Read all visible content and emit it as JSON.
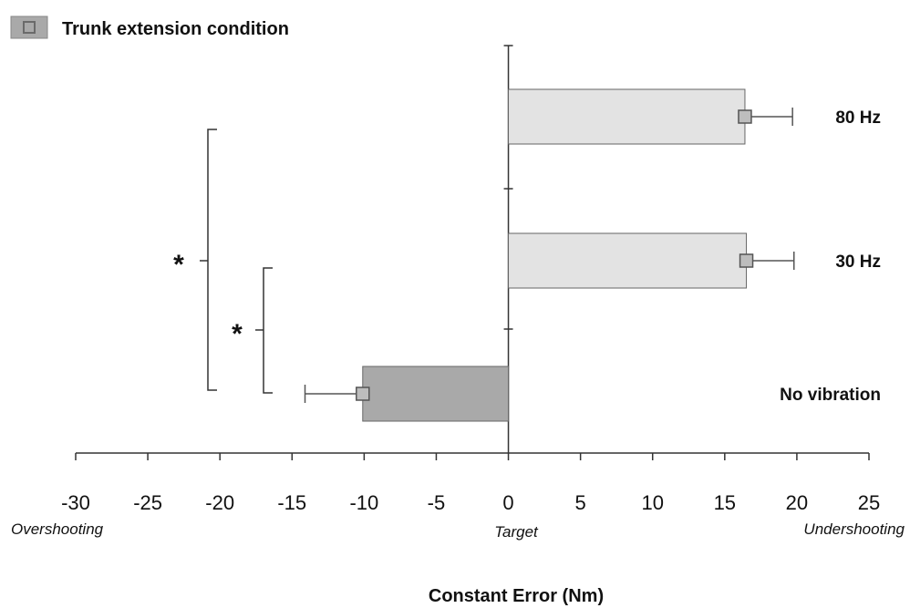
{
  "chart_data": {
    "type": "bar",
    "orientation": "horizontal",
    "legend": {
      "label": "Trunk extension condition",
      "placement": "top-left"
    },
    "categories": [
      "No vibration",
      "30 Hz",
      "80 Hz"
    ],
    "series": [
      {
        "name": "Trunk extension condition",
        "values": [
          -10.1,
          16.5,
          16.4
        ],
        "errors": [
          4.0,
          3.3,
          3.3
        ],
        "colors": [
          "#a9a9a9",
          "#e3e3e3",
          "#e3e3e3"
        ]
      }
    ],
    "xlabel": "Constant Error (Nm)",
    "ylabel": "",
    "xlim": [
      -30,
      25
    ],
    "xticks": [
      -30,
      -25,
      -20,
      -15,
      -10,
      -5,
      0,
      5,
      10,
      15,
      20,
      25
    ],
    "tick_labels": [
      "-30",
      "-25",
      "-20",
      "-15",
      "-10",
      "-5",
      "0",
      "5",
      "10",
      "15",
      "20",
      "25"
    ],
    "grid": false,
    "annotations": {
      "left": "Overshooting",
      "center": "Target",
      "right": "Undershooting"
    },
    "significance": [
      {
        "label": "*",
        "from": "No vibration",
        "to": "80 Hz"
      },
      {
        "label": "*",
        "from": "No vibration",
        "to": "30 Hz"
      }
    ]
  }
}
